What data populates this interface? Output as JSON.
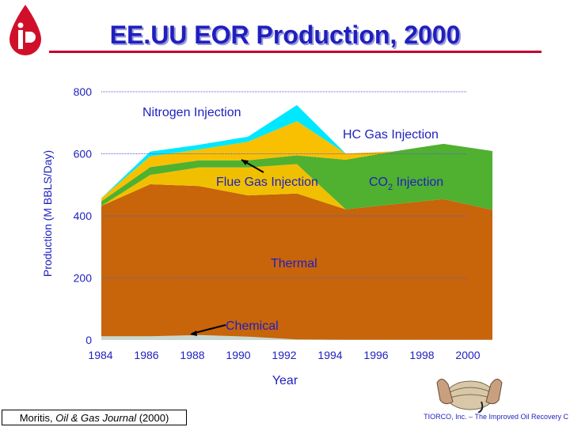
{
  "title": "EE.UU EOR Production, 2000",
  "source": {
    "author": "Moritis, ",
    "journal": "Oil & Gas Journal",
    "year": " (2000)"
  },
  "footer": "TIORCO, Inc. – The Improved Oil Recovery C",
  "colors": {
    "thermal": "#c8640a",
    "chemical": "#c8d8d0",
    "flue": "#f0c000",
    "co2": "#50b030",
    "hc": "#f8c000",
    "nitrogen": "#00e8ff",
    "text": "#1f1fbf",
    "accent": "#c0002a"
  },
  "chart_data": {
    "type": "area",
    "stacked": true,
    "x": [
      1984,
      1986,
      1988,
      1990,
      1992,
      1994,
      1996,
      1998,
      2000
    ],
    "xlabel": "Year",
    "ylabel": "Production (M BBLS/Day)",
    "ylim": [
      0,
      800
    ],
    "yticks": [
      0,
      200,
      400,
      600,
      800
    ],
    "grid": true,
    "series": [
      {
        "name": "Chemical",
        "values": [
          12,
          12,
          16,
          11,
          2,
          1,
          1,
          1,
          1
        ]
      },
      {
        "name": "Thermal",
        "values": [
          420,
          490,
          480,
          455,
          470,
          420,
          437,
          453,
          418
        ]
      },
      {
        "name": "Flue Gas Injection",
        "values": [
          0,
          30,
          60,
          90,
          95,
          0,
          0,
          0,
          0
        ]
      },
      {
        "name": "CO2 Injection",
        "values": [
          15,
          25,
          23,
          23,
          28,
          160,
          170,
          178,
          190
        ]
      },
      {
        "name": "HC Gas Injection",
        "values": [
          10,
          35,
          35,
          60,
          110,
          20,
          0,
          0,
          0
        ]
      },
      {
        "name": "Nitrogen Injection",
        "values": [
          0,
          15,
          15,
          16,
          52,
          0,
          0,
          0,
          0
        ]
      }
    ],
    "annotations": [
      {
        "text": "Nitrogen Injection"
      },
      {
        "text": "HC Gas Injection"
      },
      {
        "text": "Flue Gas Injection"
      },
      {
        "text": "CO",
        "sub": "2",
        "text2": " Injection"
      },
      {
        "text": "Thermal"
      },
      {
        "text": "Chemical"
      }
    ]
  }
}
